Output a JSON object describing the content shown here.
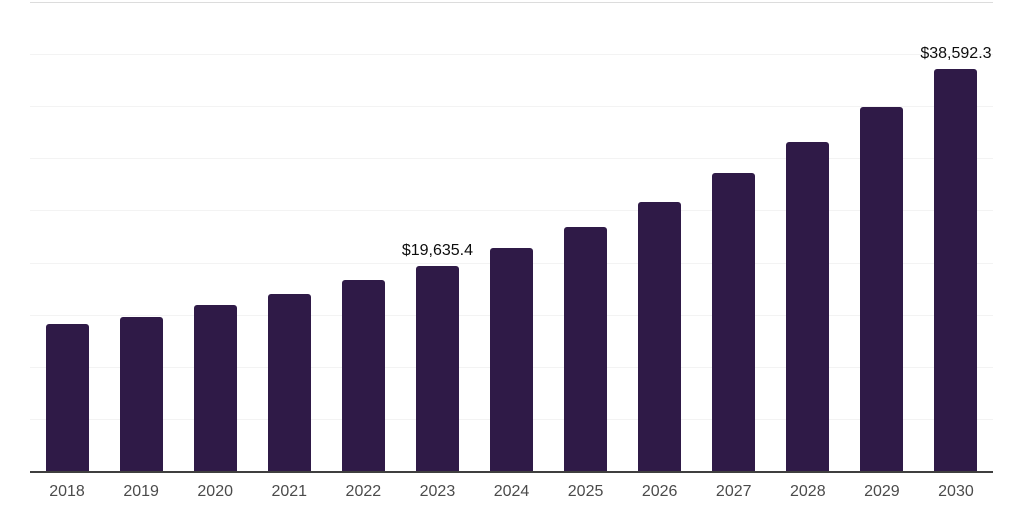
{
  "chart_data": {
    "type": "bar",
    "title": "",
    "xlabel": "",
    "ylabel": "",
    "categories": [
      "2018",
      "2019",
      "2020",
      "2021",
      "2022",
      "2023",
      "2024",
      "2025",
      "2026",
      "2027",
      "2028",
      "2029",
      "2030"
    ],
    "values": [
      14100,
      14800,
      15900,
      17000,
      18300,
      19635.4,
      21400,
      23400,
      25800,
      28600,
      31600,
      34900,
      38592.3
    ],
    "value_labels": {
      "2023": "$19,635.4",
      "2030": "$38,592.3"
    },
    "ylim": [
      0,
      45000
    ],
    "grid_interval": 5000,
    "grid": true,
    "legend": false,
    "colors": {
      "bar": "#2f1a47",
      "gridline": "#f3f3f3",
      "top_border": "#dcdcdc",
      "axis_line": "#3f3f3f",
      "tick_label": "#4b4b4b",
      "value_label": "#0d0d0d",
      "background": "#ffffff"
    }
  }
}
